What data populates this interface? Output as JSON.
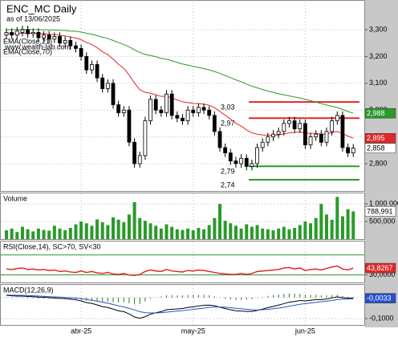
{
  "chart_data": [
    {
      "type": "candlestick",
      "title": "ENC_MC Daily",
      "subtitle": "as of 13/06/2025",
      "watermark": "www.wealth-lab.com",
      "open": [
        3.28,
        3.29,
        3.28,
        3.29,
        3.3,
        3.285,
        3.29,
        3.27,
        3.28,
        3.265,
        3.275,
        3.25,
        3.26,
        3.24,
        3.23,
        3.2,
        3.15,
        3.17,
        3.12,
        3.08,
        3.1,
        3.02,
        2.99,
        3.0,
        2.88,
        2.8,
        2.83,
        2.96,
        3.04,
        3.0,
        2.99,
        3.06,
        2.98,
        2.97,
        2.96,
        3.0,
        2.99,
        3.01,
        3.0,
        2.98,
        2.92,
        2.86,
        2.84,
        2.81,
        2.8,
        2.82,
        2.79,
        2.8,
        2.86,
        2.88,
        2.9,
        2.91,
        2.92,
        2.95,
        2.96,
        2.93,
        2.95,
        2.87,
        2.9,
        2.91,
        2.88,
        2.92,
        2.96,
        2.98,
        2.86,
        2.84
      ],
      "high": [
        3.305,
        3.305,
        3.31,
        3.315,
        3.315,
        3.305,
        3.305,
        3.295,
        3.295,
        3.29,
        3.29,
        3.275,
        3.275,
        3.255,
        3.245,
        3.215,
        3.185,
        3.185,
        3.135,
        3.115,
        3.115,
        3.035,
        3.015,
        3.015,
        2.895,
        2.845,
        2.975,
        3.055,
        3.055,
        3.015,
        3.075,
        3.075,
        2.995,
        2.985,
        3.015,
        3.015,
        3.025,
        3.025,
        3.015,
        2.995,
        2.935,
        2.875,
        2.855,
        2.825,
        2.835,
        2.835,
        2.815,
        2.875,
        2.895,
        2.915,
        2.925,
        2.935,
        2.965,
        2.975,
        2.975,
        2.965,
        2.965,
        2.915,
        2.925,
        2.925,
        2.935,
        2.975,
        2.995,
        2.995,
        2.875,
        2.873
      ],
      "low": [
        3.265,
        3.265,
        3.265,
        3.275,
        3.27,
        3.27,
        3.255,
        3.255,
        3.25,
        3.25,
        3.235,
        3.235,
        3.225,
        3.215,
        3.185,
        3.135,
        3.135,
        3.105,
        3.065,
        3.065,
        3.005,
        2.975,
        2.975,
        2.865,
        2.785,
        2.785,
        2.815,
        2.945,
        2.985,
        2.975,
        2.975,
        2.965,
        2.955,
        2.945,
        2.945,
        2.975,
        2.975,
        2.985,
        2.965,
        2.905,
        2.845,
        2.825,
        2.795,
        2.785,
        2.785,
        2.775,
        2.775,
        2.785,
        2.845,
        2.865,
        2.885,
        2.895,
        2.905,
        2.935,
        2.915,
        2.915,
        2.855,
        2.855,
        2.885,
        2.865,
        2.865,
        2.905,
        2.945,
        2.845,
        2.825,
        2.825
      ],
      "close": [
        3.29,
        3.28,
        3.295,
        3.3,
        3.285,
        3.29,
        3.27,
        3.28,
        3.265,
        3.275,
        3.25,
        3.26,
        3.24,
        3.23,
        3.2,
        3.15,
        3.17,
        3.12,
        3.08,
        3.1,
        3.02,
        2.99,
        3.0,
        2.88,
        2.8,
        2.83,
        2.96,
        3.04,
        3.0,
        2.99,
        3.06,
        2.98,
        2.97,
        2.96,
        3.0,
        2.99,
        3.01,
        3.0,
        2.98,
        2.92,
        2.86,
        2.84,
        2.81,
        2.8,
        2.82,
        2.79,
        2.8,
        2.86,
        2.88,
        2.9,
        2.91,
        2.92,
        2.95,
        2.96,
        2.93,
        2.95,
        2.87,
        2.9,
        2.91,
        2.88,
        2.92,
        2.96,
        2.98,
        2.86,
        2.84,
        2.858
      ],
      "close_last_label": "2,858",
      "series": [
        {
          "name": "EMA(Close,21)",
          "color": "#e02828",
          "last_label": "2,895",
          "values": [
            3.285,
            3.285,
            3.286,
            3.287,
            3.287,
            3.287,
            3.286,
            3.285,
            3.283,
            3.282,
            3.279,
            3.277,
            3.273,
            3.269,
            3.263,
            3.252,
            3.245,
            3.233,
            3.218,
            3.207,
            3.19,
            3.171,
            3.156,
            3.131,
            3.101,
            3.076,
            3.066,
            3.063,
            3.057,
            3.051,
            3.052,
            3.045,
            3.038,
            3.031,
            3.028,
            3.025,
            3.024,
            3.022,
            3.018,
            3.009,
            2.995,
            2.981,
            2.966,
            2.951,
            2.94,
            2.926,
            2.915,
            2.91,
            2.907,
            2.906,
            2.906,
            2.907,
            2.911,
            2.915,
            2.916,
            2.919,
            2.914,
            2.913,
            2.913,
            2.91,
            2.911,
            2.916,
            2.92,
            2.912,
            2.903,
            2.895
          ]
        },
        {
          "name": "EMA(Close,70)",
          "color": "#2a9a2a",
          "last_label": "2,988",
          "values": [
            3.3,
            3.3,
            3.3,
            3.301,
            3.301,
            3.301,
            3.3,
            3.3,
            3.299,
            3.299,
            3.298,
            3.297,
            3.295,
            3.294,
            3.291,
            3.287,
            3.283,
            3.278,
            3.272,
            3.267,
            3.26,
            3.252,
            3.245,
            3.236,
            3.225,
            3.215,
            3.208,
            3.204,
            3.199,
            3.193,
            3.19,
            3.184,
            3.178,
            3.172,
            3.168,
            3.163,
            3.159,
            3.155,
            3.15,
            3.144,
            3.137,
            3.129,
            3.121,
            3.113,
            3.106,
            3.097,
            3.089,
            3.083,
            3.077,
            3.071,
            3.066,
            3.061,
            3.057,
            3.053,
            3.049,
            3.045,
            3.04,
            3.035,
            3.03,
            3.024,
            3.019,
            3.014,
            3.01,
            3.002,
            2.995,
            2.988
          ]
        }
      ],
      "levels": [
        {
          "value": 3.03,
          "label": "3,03",
          "color": "#e02828"
        },
        {
          "value": 2.97,
          "label": "2,97",
          "color": "#e02828"
        },
        {
          "value": 2.79,
          "label": "2,79",
          "color": "#2a9a2a"
        },
        {
          "value": 2.74,
          "label": "2,74",
          "color": "#2a9a2a"
        }
      ],
      "ylim": [
        2.698,
        3.405
      ],
      "yticks": [
        {
          "value": 3.3,
          "label": "3,300"
        },
        {
          "value": 3.2,
          "label": "3,200"
        },
        {
          "value": 3.1,
          "label": "3,100"
        },
        {
          "value": 3.0,
          "label": "3,000"
        },
        {
          "value": 2.9,
          "label": "2,900"
        },
        {
          "value": 2.8,
          "label": "2,800"
        }
      ],
      "grid": true
    },
    {
      "type": "bar",
      "title": "Volume",
      "color": "#2a9a2a",
      "last_label": "788,991",
      "values": [
        250000,
        300000,
        200000,
        350000,
        280000,
        220000,
        300000,
        260000,
        240000,
        380000,
        300000,
        250000,
        320000,
        420000,
        500000,
        450000,
        380000,
        560000,
        480000,
        400000,
        620000,
        550000,
        480000,
        700000,
        1050000,
        600000,
        520000,
        450000,
        380000,
        300000,
        420000,
        350000,
        280000,
        260000,
        300000,
        250000,
        320000,
        280000,
        400000,
        600000,
        1000000,
        520000,
        450000,
        380000,
        300000,
        420000,
        350000,
        400000,
        300000,
        280000,
        250000,
        300000,
        350000,
        280000,
        320000,
        400000,
        500000,
        450000,
        600000,
        1000000,
        700000,
        550000,
        1200000,
        650000,
        850000,
        788991
      ],
      "ylim": [
        0,
        1300000
      ],
      "yticks": [
        {
          "value": 1000000,
          "label": "1 000 000"
        },
        {
          "value": 500000,
          "label": "500,000"
        }
      ]
    },
    {
      "type": "line",
      "title": "RSI(Close,14), SC>70, SV<30",
      "color": "#e02828",
      "last_label": "43,8267",
      "values": [
        42,
        41,
        43,
        44,
        41,
        42,
        40,
        41,
        39,
        40,
        37,
        38,
        36,
        35,
        38,
        35,
        37,
        34,
        33,
        35,
        32,
        31,
        33,
        30,
        29,
        31,
        37,
        40,
        38,
        37,
        41,
        38,
        37,
        36,
        39,
        38,
        40,
        39,
        37,
        35,
        33,
        32,
        31,
        31,
        33,
        31,
        33,
        37,
        38,
        39,
        40,
        41,
        44,
        45,
        42,
        44,
        39,
        41,
        42,
        40,
        43,
        46,
        48,
        42,
        40,
        43.8267
      ],
      "guides": [
        70,
        30
      ],
      "guide_color": "#2a9a2a",
      "ylim": [
        15,
        97
      ],
      "yticks": [
        {
          "value": 30,
          "label": "30,0000"
        }
      ]
    },
    {
      "type": "line",
      "title": "MACD(12,26,9)",
      "last_label": "-0,0033",
      "series": [
        {
          "color": "#000000",
          "values": [
            0.01,
            0.008,
            0.007,
            0.007,
            0.005,
            0.004,
            0.002,
            0.001,
            -0.001,
            -0.002,
            -0.004,
            -0.005,
            -0.008,
            -0.011,
            -0.016,
            -0.024,
            -0.028,
            -0.035,
            -0.043,
            -0.047,
            -0.055,
            -0.063,
            -0.067,
            -0.078,
            -0.092,
            -0.098,
            -0.091,
            -0.079,
            -0.072,
            -0.067,
            -0.058,
            -0.056,
            -0.054,
            -0.052,
            -0.047,
            -0.044,
            -0.04,
            -0.037,
            -0.036,
            -0.039,
            -0.046,
            -0.052,
            -0.058,
            -0.063,
            -0.064,
            -0.066,
            -0.066,
            -0.061,
            -0.055,
            -0.048,
            -0.042,
            -0.036,
            -0.029,
            -0.022,
            -0.019,
            -0.014,
            -0.016,
            -0.013,
            -0.01,
            -0.01,
            -0.007,
            -0.002,
            0.003,
            -0.001,
            -0.003,
            -0.0033
          ]
        },
        {
          "color": "#2850c8",
          "values": [
            0.012,
            0.011,
            0.01,
            0.01,
            0.009,
            0.008,
            0.007,
            0.006,
            0.004,
            0.003,
            0.002,
            0.0,
            -0.001,
            -0.003,
            -0.006,
            -0.009,
            -0.013,
            -0.017,
            -0.022,
            -0.027,
            -0.033,
            -0.039,
            -0.045,
            -0.051,
            -0.059,
            -0.067,
            -0.072,
            -0.073,
            -0.073,
            -0.072,
            -0.069,
            -0.067,
            -0.064,
            -0.062,
            -0.059,
            -0.056,
            -0.053,
            -0.05,
            -0.047,
            -0.045,
            -0.045,
            -0.046,
            -0.048,
            -0.051,
            -0.053,
            -0.056,
            -0.058,
            -0.059,
            -0.058,
            -0.056,
            -0.053,
            -0.05,
            -0.046,
            -0.041,
            -0.037,
            -0.032,
            -0.029,
            -0.026,
            -0.023,
            -0.02,
            -0.017,
            -0.014,
            -0.01,
            -0.008,
            -0.007,
            -0.006
          ]
        }
      ],
      "histogram": {
        "color": "#2a7a2a",
        "values": [
          -0.002,
          -0.003,
          -0.003,
          -0.003,
          -0.004,
          -0.004,
          -0.005,
          -0.005,
          -0.005,
          -0.005,
          -0.006,
          -0.005,
          -0.007,
          -0.008,
          -0.01,
          -0.015,
          -0.015,
          -0.018,
          -0.021,
          -0.02,
          -0.022,
          -0.024,
          -0.022,
          -0.027,
          -0.033,
          -0.031,
          -0.019,
          -0.006,
          0.001,
          0.005,
          0.011,
          0.011,
          0.01,
          0.01,
          0.012,
          0.012,
          0.013,
          0.013,
          0.011,
          0.006,
          -0.001,
          -0.006,
          -0.01,
          -0.012,
          -0.011,
          -0.01,
          -0.008,
          -0.002,
          0.003,
          0.008,
          0.011,
          0.014,
          0.017,
          0.019,
          0.018,
          0.018,
          0.013,
          0.013,
          0.013,
          0.01,
          0.01,
          0.012,
          0.013,
          0.007,
          0.004,
          0.0027
        ]
      },
      "ylim": [
        -0.13,
        0.06
      ],
      "yticks": [
        {
          "value": 0,
          "label": "0,0000"
        },
        {
          "value": -0.1,
          "label": "-0,1000"
        }
      ],
      "categories": [
        null,
        null,
        null,
        null,
        null,
        null,
        null,
        null,
        null,
        null,
        null,
        null,
        null,
        null,
        "abr-25",
        null,
        null,
        null,
        null,
        null,
        null,
        null,
        null,
        null,
        null,
        null,
        null,
        null,
        null,
        null,
        null,
        null,
        null,
        null,
        null,
        "may-25",
        null,
        null,
        null,
        null,
        null,
        null,
        null,
        null,
        null,
        null,
        null,
        null,
        null,
        null,
        null,
        null,
        null,
        null,
        null,
        null,
        "jun-25",
        null,
        null,
        null,
        null,
        null,
        null,
        null,
        null,
        null
      ]
    }
  ]
}
